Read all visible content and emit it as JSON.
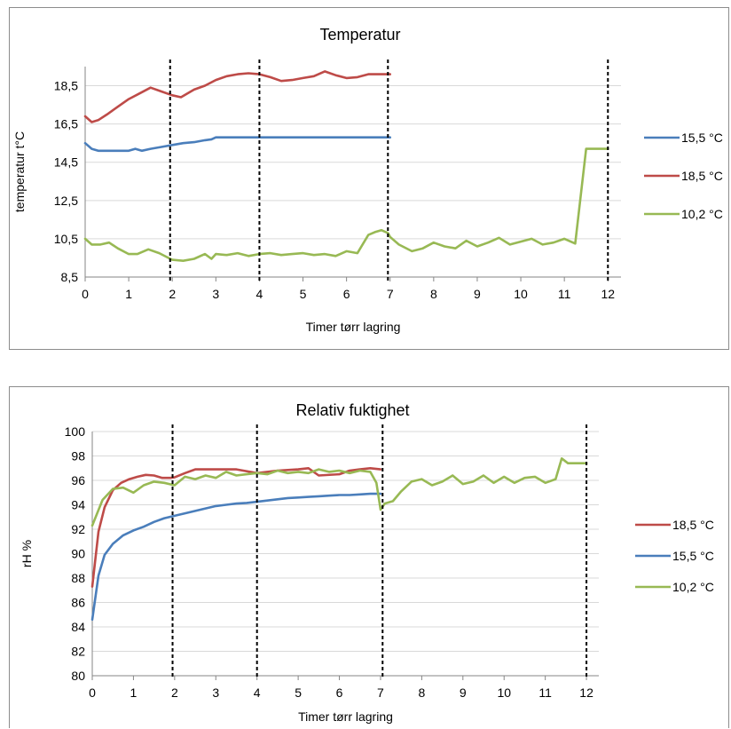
{
  "chart_data": [
    {
      "type": "line",
      "title": "Temperatur",
      "xlabel": "Timer tørr lagring",
      "ylabel": "temperatur  t°C",
      "xlim": [
        0,
        12.3
      ],
      "ylim": [
        8.5,
        19.5
      ],
      "yticks": [
        "8,5",
        "10,5",
        "12,5",
        "14,5",
        "16,5",
        "18,5"
      ],
      "ytick_values": [
        8.5,
        10.5,
        12.5,
        14.5,
        16.5,
        18.5
      ],
      "xticks": [
        "0",
        "1",
        "2",
        "3",
        "4",
        "5",
        "6",
        "7",
        "8",
        "9",
        "10",
        "11",
        "12"
      ],
      "vlines": [
        1.95,
        4.0,
        6.95,
        12.0
      ],
      "legend_position": "right",
      "series": [
        {
          "name": "15,5 °C",
          "color": "#4a7ebb",
          "x": [
            0,
            0.15,
            0.3,
            0.5,
            0.75,
            1.0,
            1.15,
            1.3,
            1.5,
            1.75,
            2.0,
            2.25,
            2.5,
            2.75,
            2.9,
            3.0,
            3.5,
            4.0,
            5.0,
            6.0,
            7.0
          ],
          "y": [
            15.5,
            15.2,
            15.1,
            15.1,
            15.1,
            15.1,
            15.2,
            15.1,
            15.2,
            15.3,
            15.4,
            15.5,
            15.55,
            15.65,
            15.7,
            15.8,
            15.8,
            15.8,
            15.8,
            15.8,
            15.8
          ]
        },
        {
          "name": "18,5 °C",
          "color": "#be4b48",
          "x": [
            0,
            0.15,
            0.3,
            0.5,
            0.75,
            1.0,
            1.25,
            1.5,
            1.75,
            2.0,
            2.2,
            2.5,
            2.75,
            3.0,
            3.25,
            3.5,
            3.75,
            4.0,
            4.25,
            4.5,
            4.75,
            5.0,
            5.25,
            5.5,
            5.75,
            6.0,
            6.25,
            6.5,
            7.0
          ],
          "y": [
            16.9,
            16.6,
            16.7,
            17.0,
            17.4,
            17.8,
            18.1,
            18.4,
            18.2,
            18.0,
            17.9,
            18.3,
            18.5,
            18.8,
            19.0,
            19.1,
            19.15,
            19.1,
            18.95,
            18.75,
            18.8,
            18.9,
            19.0,
            19.25,
            19.05,
            18.9,
            18.95,
            19.1,
            19.1
          ]
        },
        {
          "name": "10,2 °C",
          "color": "#98b954",
          "x": [
            0,
            0.15,
            0.35,
            0.55,
            0.75,
            1.0,
            1.2,
            1.45,
            1.7,
            2.0,
            2.25,
            2.5,
            2.75,
            2.9,
            3.0,
            3.25,
            3.5,
            3.75,
            4.0,
            4.25,
            4.5,
            4.75,
            5.0,
            5.25,
            5.5,
            5.75,
            6.0,
            6.25,
            6.5,
            6.65,
            6.8,
            6.95,
            7.0,
            7.2,
            7.5,
            7.75,
            8.0,
            8.25,
            8.5,
            8.75,
            9.0,
            9.25,
            9.5,
            9.75,
            10.0,
            10.25,
            10.5,
            10.75,
            11.0,
            11.25,
            11.5,
            11.75,
            12.0
          ],
          "y": [
            10.5,
            10.2,
            10.2,
            10.3,
            10.0,
            9.7,
            9.7,
            9.95,
            9.75,
            9.4,
            9.35,
            9.45,
            9.7,
            9.45,
            9.7,
            9.65,
            9.75,
            9.6,
            9.7,
            9.75,
            9.65,
            9.7,
            9.75,
            9.65,
            9.7,
            9.6,
            9.85,
            9.75,
            10.7,
            10.85,
            10.95,
            10.8,
            10.6,
            10.2,
            9.85,
            10.0,
            10.3,
            10.1,
            10.0,
            10.4,
            10.1,
            10.3,
            10.55,
            10.2,
            10.35,
            10.5,
            10.2,
            10.3,
            10.5,
            10.25,
            15.2,
            15.2,
            15.2
          ]
        }
      ]
    },
    {
      "type": "line",
      "title": "Relativ fuktighet",
      "xlabel": "Timer tørr lagring",
      "ylabel": "rH %",
      "xlim": [
        0,
        12.3
      ],
      "ylim": [
        80,
        100
      ],
      "yticks": [
        "80",
        "82",
        "84",
        "86",
        "88",
        "90",
        "92",
        "94",
        "96",
        "98",
        "100"
      ],
      "ytick_values": [
        80,
        82,
        84,
        86,
        88,
        90,
        92,
        94,
        96,
        98,
        100
      ],
      "xticks": [
        "0",
        "1",
        "2",
        "3",
        "4",
        "5",
        "6",
        "7",
        "8",
        "9",
        "10",
        "11",
        "12"
      ],
      "vlines": [
        1.95,
        4.0,
        7.05,
        12.0
      ],
      "legend_position": "right",
      "series": [
        {
          "name": "18,5 °C",
          "color": "#be4b48",
          "x": [
            0,
            0.15,
            0.3,
            0.5,
            0.7,
            0.9,
            1.1,
            1.3,
            1.5,
            1.7,
            1.9,
            2.0,
            2.25,
            2.5,
            3.0,
            3.5,
            4.0,
            4.5,
            5.0,
            5.25,
            5.5,
            6.0,
            6.25,
            6.5,
            6.75,
            7.0
          ],
          "y": [
            87.3,
            91.8,
            93.8,
            95.2,
            95.8,
            96.1,
            96.3,
            96.45,
            96.4,
            96.2,
            96.2,
            96.25,
            96.6,
            96.9,
            96.9,
            96.9,
            96.6,
            96.8,
            96.9,
            97.0,
            96.4,
            96.5,
            96.8,
            96.9,
            97.0,
            96.9
          ]
        },
        {
          "name": "15,5 °C",
          "color": "#4a7ebb",
          "x": [
            0,
            0.15,
            0.3,
            0.5,
            0.75,
            1.0,
            1.25,
            1.5,
            1.75,
            2.0,
            2.25,
            2.5,
            2.75,
            3.0,
            3.25,
            3.5,
            3.75,
            4.0,
            4.25,
            4.5,
            4.75,
            5.0,
            5.25,
            5.5,
            5.75,
            6.0,
            6.25,
            6.5,
            6.75,
            7.0
          ],
          "y": [
            84.6,
            88.2,
            89.9,
            90.8,
            91.5,
            91.9,
            92.2,
            92.6,
            92.9,
            93.1,
            93.3,
            93.5,
            93.7,
            93.9,
            94.0,
            94.1,
            94.15,
            94.25,
            94.35,
            94.45,
            94.55,
            94.6,
            94.65,
            94.7,
            94.75,
            94.8,
            94.8,
            94.85,
            94.9,
            94.9
          ]
        },
        {
          "name": "10,2 °C",
          "color": "#98b954",
          "x": [
            0,
            0.25,
            0.5,
            0.75,
            1.0,
            1.25,
            1.5,
            1.75,
            2.0,
            2.25,
            2.5,
            2.75,
            3.0,
            3.25,
            3.5,
            3.75,
            4.0,
            4.25,
            4.5,
            4.75,
            5.0,
            5.25,
            5.5,
            5.75,
            6.0,
            6.25,
            6.5,
            6.75,
            6.9,
            7.0,
            7.1,
            7.3,
            7.5,
            7.75,
            8.0,
            8.25,
            8.5,
            8.75,
            9.0,
            9.25,
            9.5,
            9.75,
            10.0,
            10.25,
            10.5,
            10.75,
            11.0,
            11.25,
            11.4,
            11.55,
            11.75,
            12.0
          ],
          "y": [
            92.3,
            94.4,
            95.3,
            95.4,
            95.0,
            95.6,
            95.9,
            95.8,
            95.6,
            96.3,
            96.1,
            96.4,
            96.2,
            96.7,
            96.4,
            96.5,
            96.6,
            96.5,
            96.8,
            96.6,
            96.7,
            96.6,
            96.9,
            96.7,
            96.8,
            96.6,
            96.8,
            96.7,
            95.8,
            93.6,
            94.1,
            94.3,
            95.1,
            95.9,
            96.1,
            95.6,
            95.9,
            96.4,
            95.7,
            95.9,
            96.4,
            95.8,
            96.3,
            95.8,
            96.2,
            96.3,
            95.8,
            96.1,
            97.8,
            97.4,
            97.4,
            97.4
          ]
        }
      ]
    }
  ]
}
